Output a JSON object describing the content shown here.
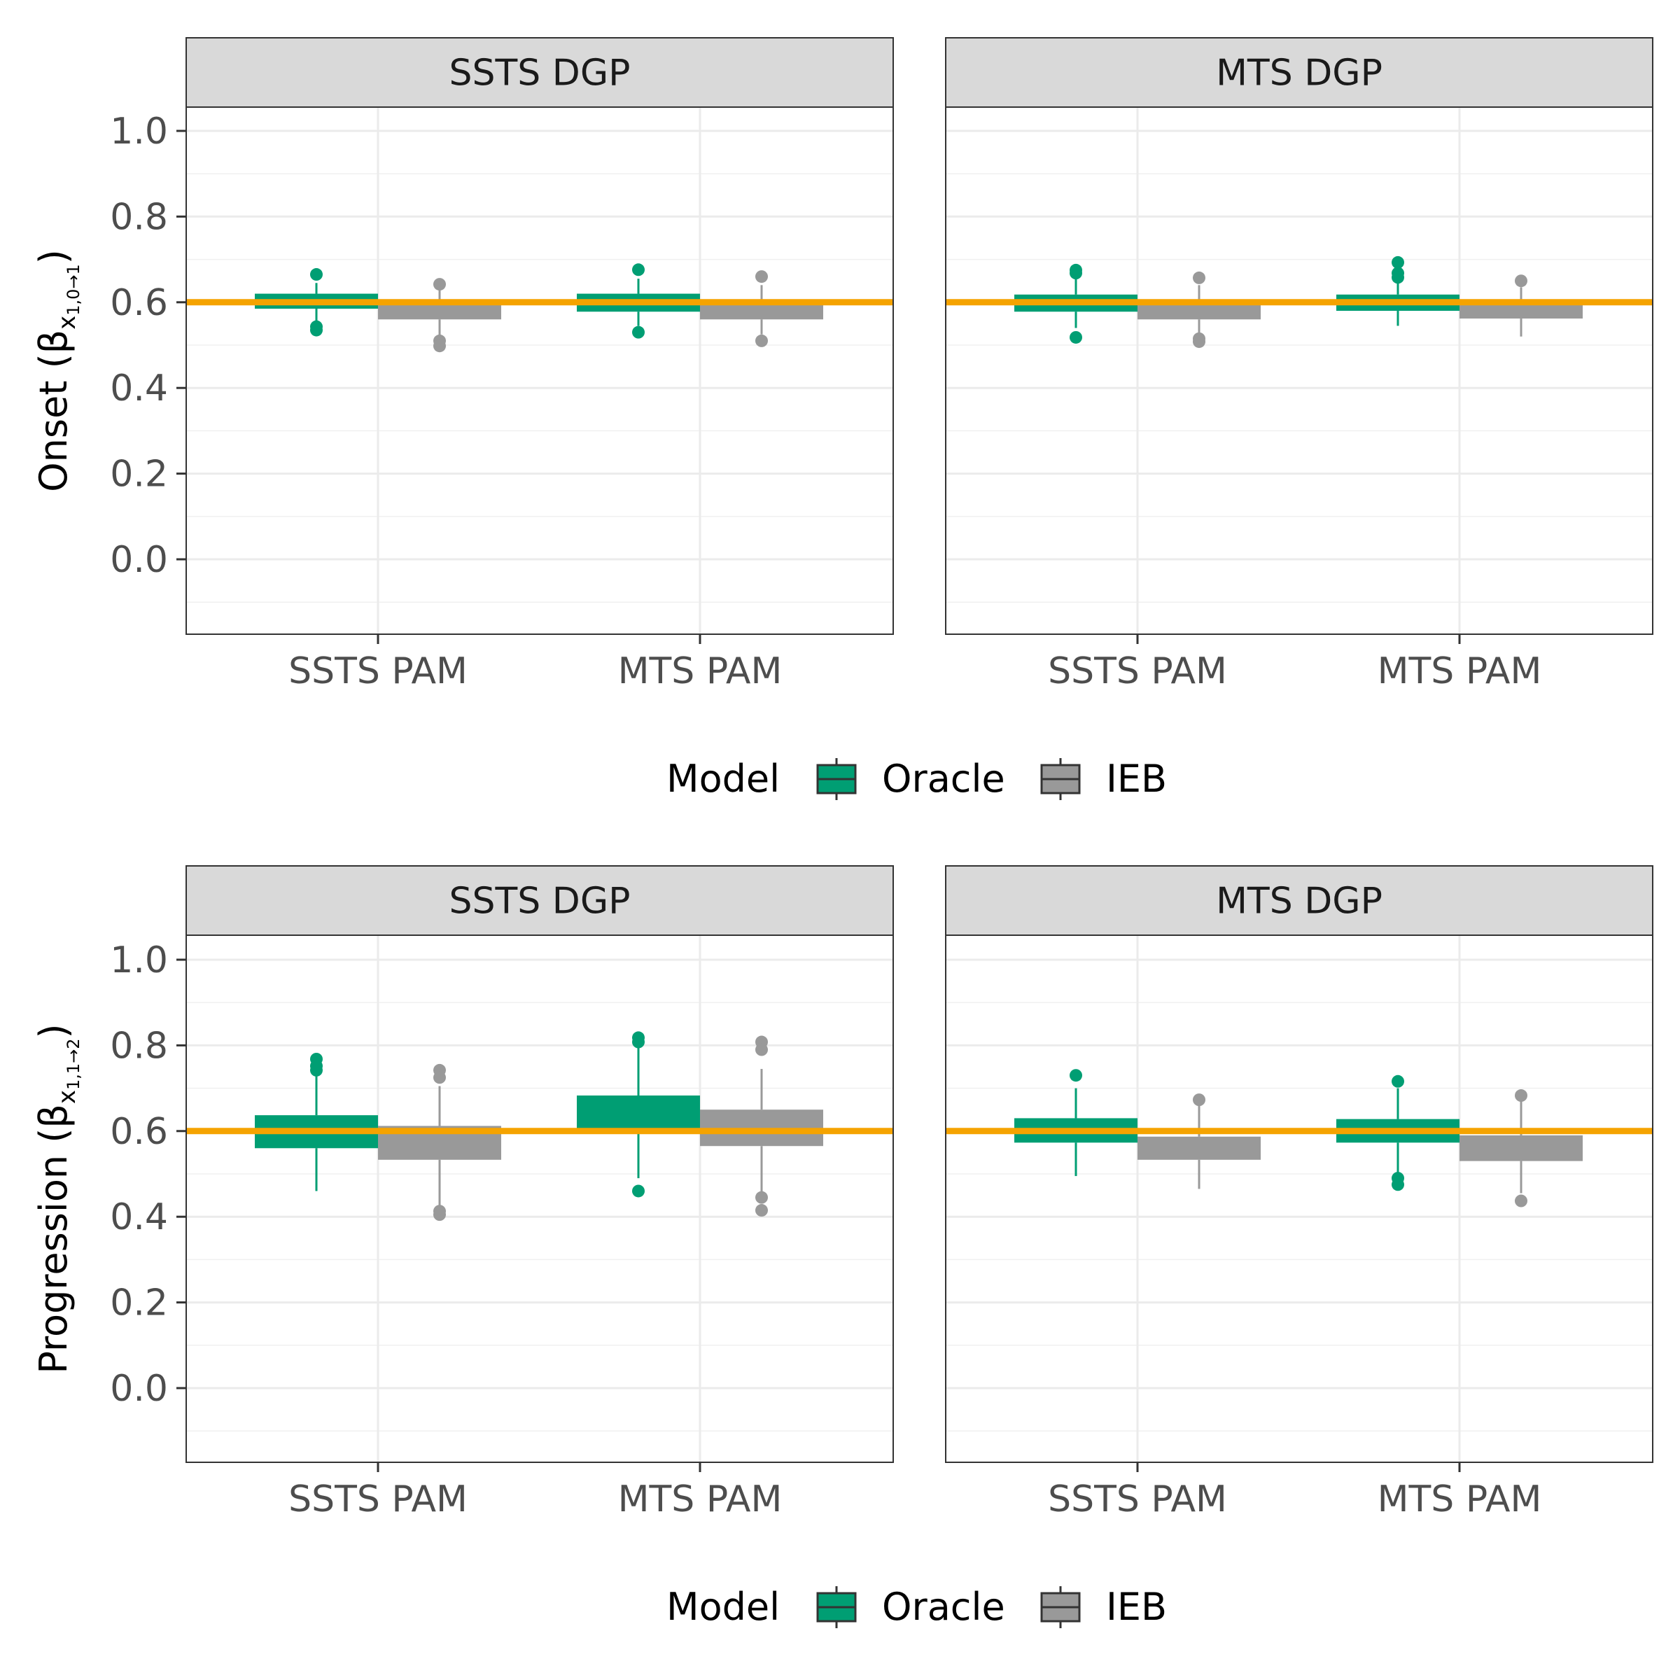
{
  "legend": {
    "title": "Model",
    "items": [
      {
        "label": "Oracle",
        "color": "#009E73"
      },
      {
        "label": "IEB",
        "color": "#999999"
      }
    ]
  },
  "reference_line_color": "#F5A300",
  "chart_data": [
    {
      "type": "box",
      "ylabel_prefix": "Onset (",
      "ylabel_beta": "β",
      "ylabel_sub": "x",
      "ylabel_sub2": "1,0→1",
      "ylabel_suffix": ")",
      "yticks": [
        "0.0",
        "0.2",
        "0.4",
        "0.6",
        "0.8",
        "1.0"
      ],
      "ylim": [
        -0.17,
        1.05
      ],
      "reference_value": 0.6,
      "categories": [
        "SSTS PAM",
        "MTS PAM"
      ],
      "panels": [
        {
          "strip": "SSTS DGP",
          "groups": [
            {
              "category": "SSTS PAM",
              "series": "Oracle",
              "q1": 0.585,
              "median": 0.6,
              "q3": 0.62,
              "whisker_low": 0.555,
              "whisker_high": 0.645,
              "outliers": [
                0.665,
                0.543,
                0.535
              ]
            },
            {
              "category": "SSTS PAM",
              "series": "IEB",
              "q1": 0.56,
              "median": 0.58,
              "q3": 0.6,
              "whisker_low": 0.52,
              "whisker_high": 0.63,
              "outliers": [
                0.642,
                0.51,
                0.498
              ]
            },
            {
              "category": "MTS PAM",
              "series": "Oracle",
              "q1": 0.578,
              "median": 0.6,
              "q3": 0.62,
              "whisker_low": 0.545,
              "whisker_high": 0.655,
              "outliers": [
                0.676,
                0.53
              ]
            },
            {
              "category": "MTS PAM",
              "series": "IEB",
              "q1": 0.56,
              "median": 0.58,
              "q3": 0.6,
              "whisker_low": 0.525,
              "whisker_high": 0.64,
              "outliers": [
                0.66,
                0.51
              ]
            }
          ]
        },
        {
          "strip": "MTS DGP",
          "groups": [
            {
              "category": "SSTS PAM",
              "series": "Oracle",
              "q1": 0.578,
              "median": 0.6,
              "q3": 0.618,
              "whisker_low": 0.54,
              "whisker_high": 0.66,
              "outliers": [
                0.675,
                0.668,
                0.518
              ]
            },
            {
              "category": "SSTS PAM",
              "series": "IEB",
              "q1": 0.56,
              "median": 0.58,
              "q3": 0.6,
              "whisker_low": 0.525,
              "whisker_high": 0.64,
              "outliers": [
                0.657,
                0.515,
                0.508
              ]
            },
            {
              "category": "MTS PAM",
              "series": "Oracle",
              "q1": 0.58,
              "median": 0.6,
              "q3": 0.618,
              "whisker_low": 0.545,
              "whisker_high": 0.655,
              "outliers": [
                0.693,
                0.668,
                0.658
              ]
            },
            {
              "category": "MTS PAM",
              "series": "IEB",
              "q1": 0.562,
              "median": 0.58,
              "q3": 0.6,
              "whisker_low": 0.52,
              "whisker_high": 0.635,
              "outliers": [
                0.65
              ]
            }
          ]
        }
      ]
    },
    {
      "type": "box",
      "ylabel_prefix": "Progression (",
      "ylabel_beta": "β",
      "ylabel_sub": "x",
      "ylabel_sub2": "1,1→2",
      "ylabel_suffix": ")",
      "yticks": [
        "0.0",
        "0.2",
        "0.4",
        "0.6",
        "0.8",
        "1.0"
      ],
      "ylim": [
        -0.17,
        1.05
      ],
      "reference_value": 0.6,
      "categories": [
        "SSTS PAM",
        "MTS PAM"
      ],
      "panels": [
        {
          "strip": "SSTS DGP",
          "groups": [
            {
              "category": "SSTS PAM",
              "series": "Oracle",
              "q1": 0.56,
              "median": 0.6,
              "q3": 0.637,
              "whisker_low": 0.46,
              "whisker_high": 0.74,
              "outliers": [
                0.768,
                0.752,
                0.742
              ]
            },
            {
              "category": "SSTS PAM",
              "series": "IEB",
              "q1": 0.533,
              "median": 0.58,
              "q3": 0.612,
              "whisker_low": 0.425,
              "whisker_high": 0.705,
              "outliers": [
                0.742,
                0.725,
                0.413,
                0.405
              ]
            },
            {
              "category": "MTS PAM",
              "series": "Oracle",
              "q1": 0.596,
              "median": 0.64,
              "q3": 0.683,
              "whisker_low": 0.49,
              "whisker_high": 0.8,
              "outliers": [
                0.818,
                0.808,
                0.46
              ]
            },
            {
              "category": "MTS PAM",
              "series": "IEB",
              "q1": 0.565,
              "median": 0.61,
              "q3": 0.65,
              "whisker_low": 0.455,
              "whisker_high": 0.745,
              "outliers": [
                0.808,
                0.79,
                0.445,
                0.415
              ]
            }
          ]
        },
        {
          "strip": "MTS DGP",
          "groups": [
            {
              "category": "SSTS PAM",
              "series": "Oracle",
              "q1": 0.573,
              "median": 0.6,
              "q3": 0.63,
              "whisker_low": 0.495,
              "whisker_high": 0.7,
              "outliers": [
                0.73
              ]
            },
            {
              "category": "SSTS PAM",
              "series": "IEB",
              "q1": 0.533,
              "median": 0.565,
              "q3": 0.587,
              "whisker_low": 0.465,
              "whisker_high": 0.66,
              "outliers": [
                0.673
              ]
            },
            {
              "category": "MTS PAM",
              "series": "Oracle",
              "q1": 0.573,
              "median": 0.6,
              "q3": 0.628,
              "whisker_low": 0.5,
              "whisker_high": 0.7,
              "outliers": [
                0.716,
                0.49,
                0.475
              ]
            },
            {
              "category": "MTS PAM",
              "series": "IEB",
              "q1": 0.53,
              "median": 0.565,
              "q3": 0.59,
              "whisker_low": 0.455,
              "whisker_high": 0.67,
              "outliers": [
                0.683,
                0.437
              ]
            }
          ]
        }
      ]
    }
  ]
}
